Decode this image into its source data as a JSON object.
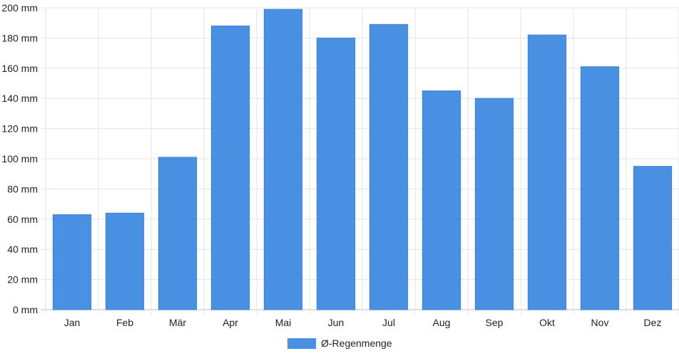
{
  "chart_data": {
    "type": "bar",
    "categories": [
      "Jan",
      "Feb",
      "Mär",
      "Apr",
      "Mai",
      "Jun",
      "Jul",
      "Aug",
      "Sep",
      "Okt",
      "Nov",
      "Dez"
    ],
    "series": [
      {
        "name": "Ø-Regenmenge",
        "values": [
          63,
          64,
          101,
          188,
          199,
          180,
          189,
          145,
          140,
          182,
          161,
          95
        ],
        "color": "#4a90e2"
      }
    ],
    "ylim": [
      0,
      200
    ],
    "yticks": [
      0,
      20,
      40,
      60,
      80,
      100,
      120,
      140,
      160,
      180,
      200
    ],
    "yunit": "mm",
    "ytick_labels": [
      "0 mm",
      "20 mm",
      "40 mm",
      "60 mm",
      "80 mm",
      "100 mm",
      "120 mm",
      "140 mm",
      "160 mm",
      "180 mm",
      "200 mm"
    ],
    "grid": true,
    "legend_position": "bottom-center"
  }
}
